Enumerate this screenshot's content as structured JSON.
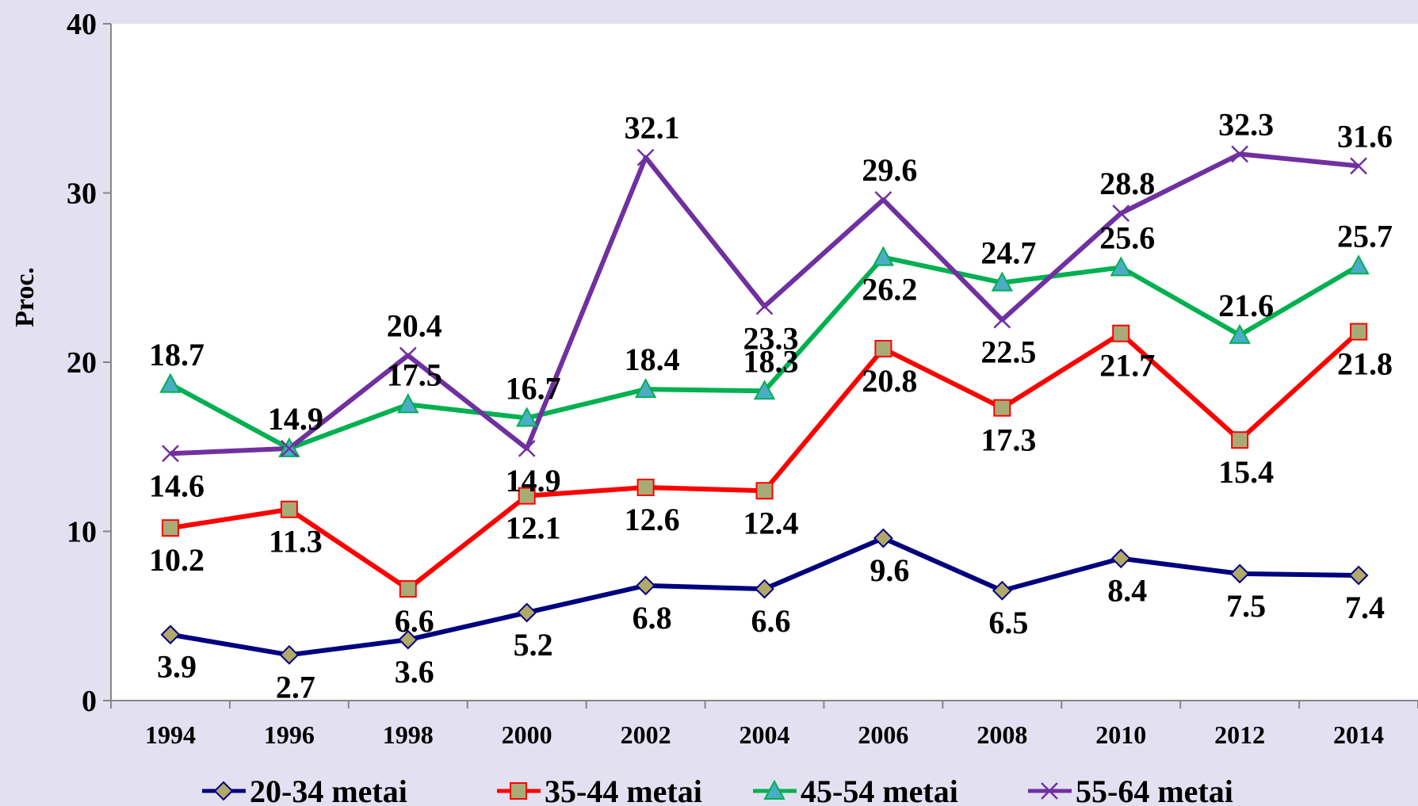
{
  "chart_data": {
    "type": "line",
    "title": "",
    "xlabel": "",
    "ylabel": "Proc.",
    "ylim": [
      0,
      40
    ],
    "yticks": [
      0,
      10,
      20,
      30,
      40
    ],
    "grid": false,
    "legend_position": "bottom",
    "categories": [
      "1994",
      "1996",
      "1998",
      "2000",
      "2002",
      "2004",
      "2006",
      "2008",
      "2010",
      "2012",
      "2014"
    ],
    "series": [
      {
        "name": "20-34 metai",
        "color": "#00007f",
        "marker": "diamond",
        "marker_fill": "#b2a86a",
        "values": [
          3.9,
          2.7,
          3.6,
          5.2,
          6.8,
          6.6,
          9.6,
          6.5,
          8.4,
          7.5,
          7.4
        ],
        "value_labels": [
          "3.9",
          "2.7",
          "3.6",
          "5.2",
          "6.8",
          "6.6",
          "9.6",
          "6.5",
          "8.4",
          "7.5",
          "7.4"
        ]
      },
      {
        "name": "35-44 metai",
        "color": "#ff0000",
        "marker": "square",
        "marker_fill": "#a9ab77",
        "values": [
          10.2,
          11.3,
          6.6,
          12.1,
          12.6,
          12.4,
          20.8,
          17.3,
          21.7,
          15.4,
          21.8
        ],
        "value_labels": [
          "10.2",
          "11.3",
          "6.6",
          "12.1",
          "12.6",
          "12.4",
          "20.8",
          "17.3",
          "21.7",
          "15.4",
          "21.8"
        ]
      },
      {
        "name": "45-54 metai",
        "color": "#00b050",
        "marker": "triangle",
        "marker_fill": "#4bacc6",
        "values": [
          18.7,
          14.9,
          17.5,
          16.7,
          18.4,
          18.3,
          26.2,
          24.7,
          25.6,
          21.6,
          25.7
        ],
        "value_labels": [
          "18.7",
          "14.9",
          "17.5",
          "16.7",
          "18.4",
          "18.3",
          "26.2",
          "24.7",
          "25.6",
          "21.6",
          "25.7"
        ]
      },
      {
        "name": "55-64 metai",
        "color": "#7030a0",
        "marker": "x",
        "marker_fill": "#7030a0",
        "values": [
          14.6,
          14.9,
          20.4,
          14.9,
          32.1,
          23.3,
          29.6,
          22.5,
          28.8,
          32.3,
          31.6
        ],
        "value_labels": [
          "14.6",
          "14.9",
          "20.4",
          "14.9",
          "32.1",
          "23.3",
          "29.6",
          "22.5",
          "28.8",
          "32.3",
          "31.6"
        ]
      }
    ]
  }
}
